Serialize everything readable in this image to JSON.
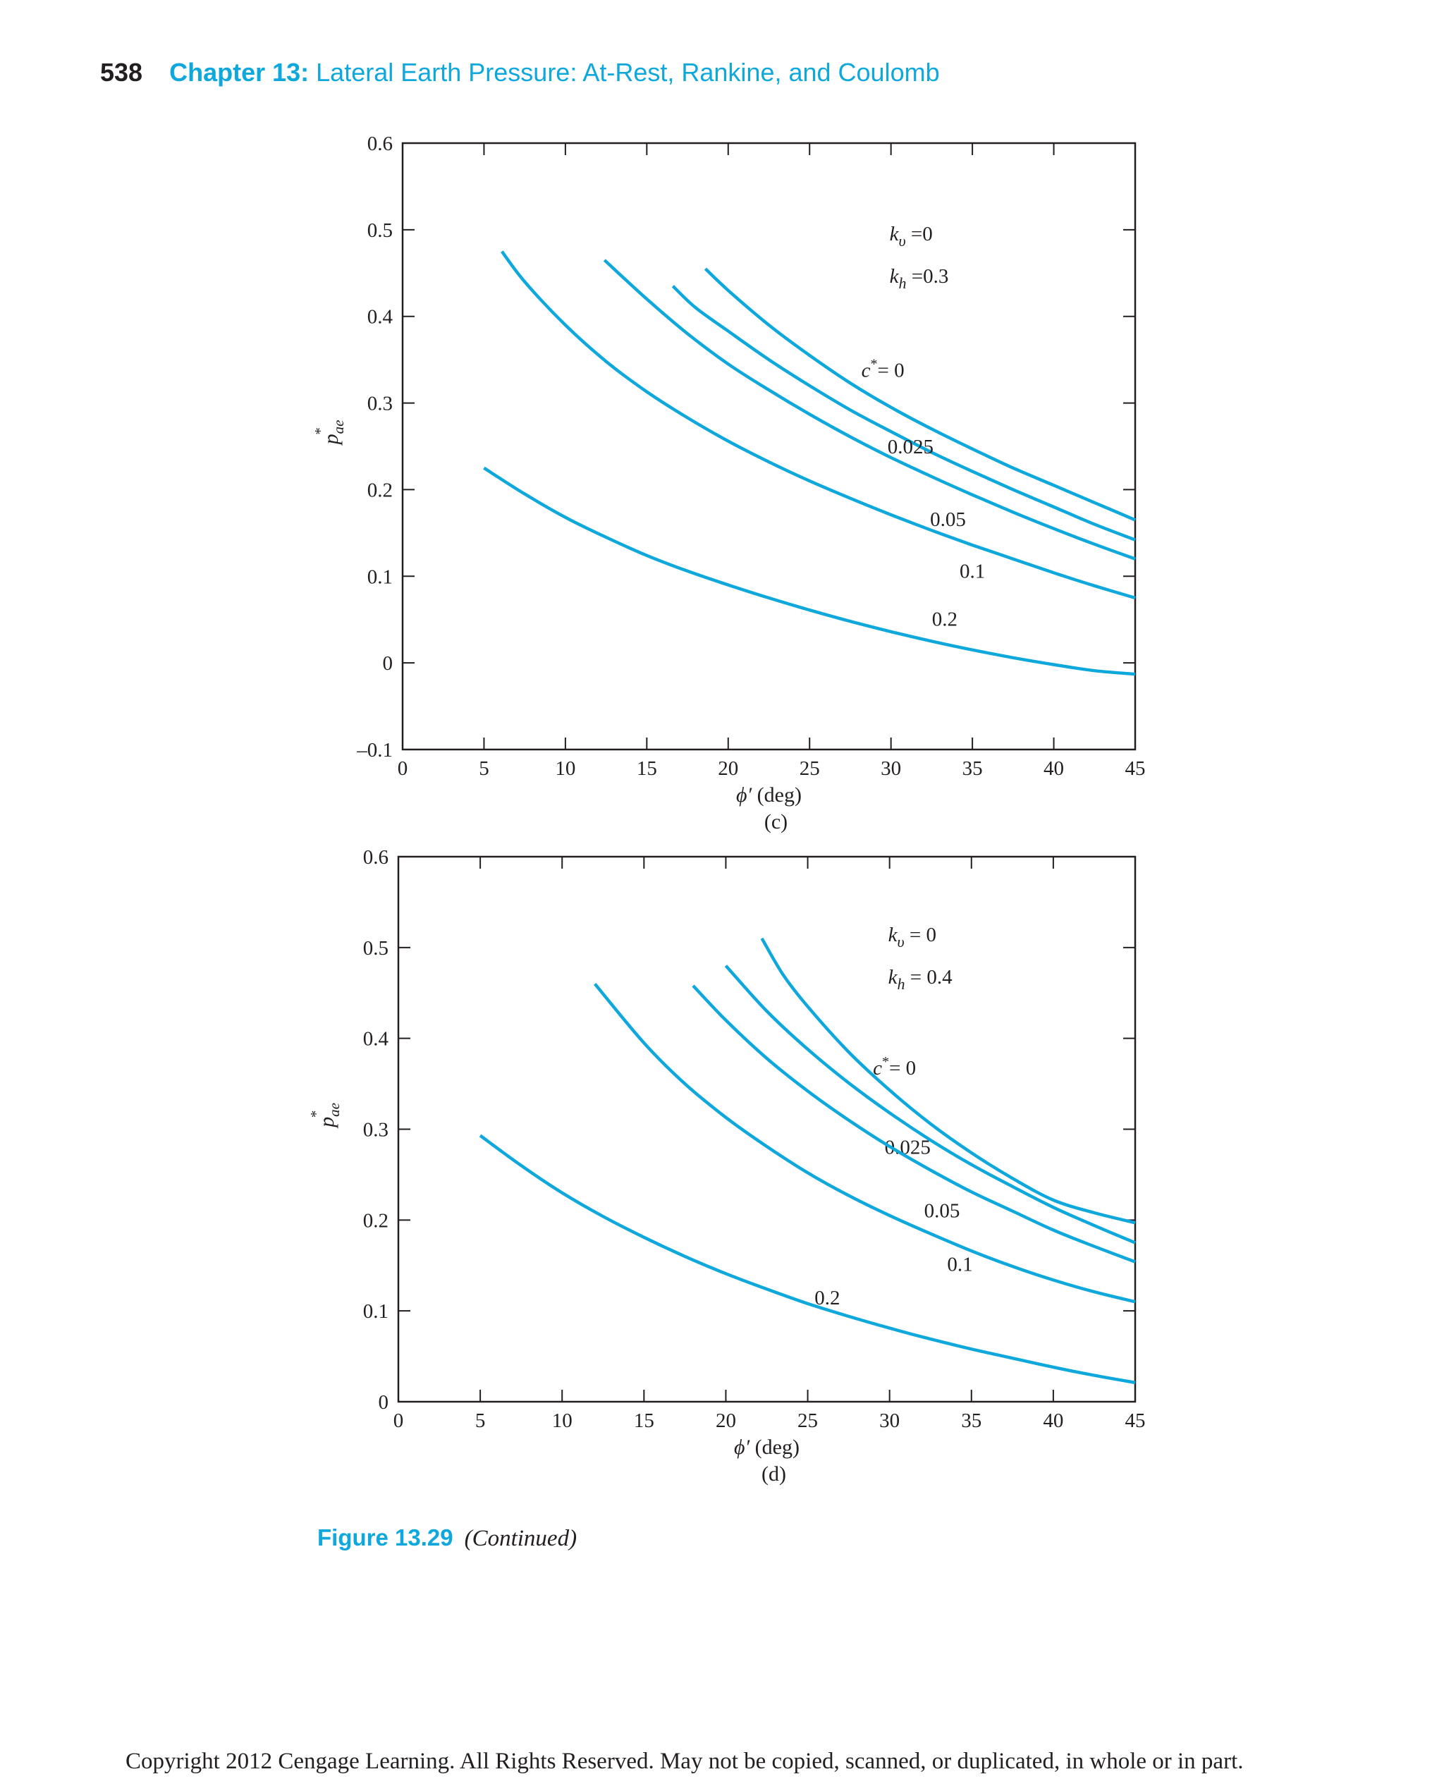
{
  "header": {
    "page_number": "538",
    "chapter_label": "Chapter 13:",
    "chapter_title": "Lateral Earth Pressure: At-Rest, Rankine, and Coulomb"
  },
  "colors": {
    "accent": "#0fa8dc",
    "curve": "#0fa8dc",
    "text": "#231f20"
  },
  "caption": {
    "figure_number": "Figure 13.29",
    "note": "(Continued)"
  },
  "footer": {
    "copyright": "Copyright 2012 Cengage Learning. All Rights Reserved. May not be copied, scanned, or duplicated, in whole or in part."
  },
  "chart_data": [
    {
      "type": "line",
      "panel": "(c)",
      "xlabel": "ϕ′ (deg)",
      "ylabel": "p*ae",
      "xlim": [
        0,
        45
      ],
      "ylim": [
        -0.1,
        0.6
      ],
      "xticks": [
        0,
        5,
        10,
        15,
        20,
        25,
        30,
        35,
        40,
        45
      ],
      "yticks": [
        -0.1,
        0,
        0.1,
        0.2,
        0.3,
        0.4,
        0.5,
        0.6
      ],
      "ytick_labels": [
        "–0.1",
        "0",
        "0.1",
        "0.2",
        "0.3",
        "0.4",
        "0.5",
        "0.6"
      ],
      "annotations": [
        "kv = 0",
        "kh = 0.3"
      ],
      "kv_label": "=0",
      "kh_label": "=0.3",
      "grid": false,
      "series": [
        {
          "name": "c* = 0",
          "label": "c* = 0",
          "label_pos": [
            29.5,
            0.33
          ],
          "x": [
            18.6,
            20,
            22.5,
            25,
            27.5,
            30,
            32.5,
            35,
            37.5,
            40,
            42.5,
            45
          ],
          "y": [
            0.455,
            0.43,
            0.39,
            0.355,
            0.323,
            0.295,
            0.27,
            0.247,
            0.225,
            0.205,
            0.185,
            0.165
          ]
        },
        {
          "name": "c* = 0.025",
          "label": "0.025",
          "label_pos": [
            31.2,
            0.242
          ],
          "x": [
            16.6,
            18,
            20,
            22.5,
            25,
            27.5,
            30,
            32.5,
            35,
            37.5,
            40,
            42.5,
            45
          ],
          "y": [
            0.435,
            0.41,
            0.383,
            0.35,
            0.32,
            0.292,
            0.267,
            0.243,
            0.221,
            0.2,
            0.18,
            0.16,
            0.142
          ]
        },
        {
          "name": "c* = 0.05",
          "label": "0.05",
          "label_pos": [
            33.5,
            0.158
          ],
          "x": [
            12.4,
            15,
            17.5,
            20,
            22.5,
            25,
            27.5,
            30,
            32.5,
            35,
            37.5,
            40,
            42.5,
            45
          ],
          "y": [
            0.465,
            0.42,
            0.38,
            0.345,
            0.315,
            0.287,
            0.261,
            0.237,
            0.215,
            0.194,
            0.174,
            0.155,
            0.137,
            0.12
          ]
        },
        {
          "name": "c* = 0.1",
          "label": "0.1",
          "label_pos": [
            35,
            0.098
          ],
          "x": [
            6.1,
            7.5,
            10,
            12.5,
            15,
            17.5,
            20,
            22.5,
            25,
            27.5,
            30,
            32.5,
            35,
            37.5,
            40,
            42.5,
            45
          ],
          "y": [
            0.475,
            0.44,
            0.39,
            0.348,
            0.313,
            0.283,
            0.256,
            0.232,
            0.21,
            0.19,
            0.171,
            0.153,
            0.136,
            0.12,
            0.104,
            0.089,
            0.075
          ]
        },
        {
          "name": "c* = 0.2",
          "label": "0.2",
          "label_pos": [
            33.3,
            0.043
          ],
          "x": [
            5,
            7.5,
            10,
            12.5,
            15,
            17.5,
            20,
            22.5,
            25,
            27.5,
            30,
            32.5,
            35,
            37.5,
            40,
            42.5,
            45
          ],
          "y": [
            0.225,
            0.195,
            0.168,
            0.145,
            0.124,
            0.106,
            0.09,
            0.075,
            0.061,
            0.048,
            0.036,
            0.025,
            0.015,
            0.006,
            -0.002,
            -0.009,
            -0.013
          ]
        }
      ]
    },
    {
      "type": "line",
      "panel": "(d)",
      "xlabel": "ϕ′ (deg)",
      "ylabel": "p*ae",
      "xlim": [
        0,
        45
      ],
      "ylim": [
        0,
        0.6
      ],
      "xticks": [
        0,
        5,
        10,
        15,
        20,
        25,
        30,
        35,
        40,
        45
      ],
      "yticks": [
        0,
        0.1,
        0.2,
        0.3,
        0.4,
        0.5,
        0.6
      ],
      "ytick_labels": [
        "0",
        "0.1",
        "0.2",
        "0.3",
        "0.4",
        "0.5",
        "0.6"
      ],
      "annotations": [
        "kv = 0",
        "kh = 0.4"
      ],
      "kv_label": "= 0",
      "kh_label": "= 0.4",
      "grid": false,
      "series": [
        {
          "name": "c* = 0",
          "label": "c* = 0",
          "label_pos": [
            30.3,
            0.36
          ],
          "x": [
            22.2,
            23.5,
            25,
            27.5,
            30,
            32.5,
            35,
            37.5,
            40,
            42.5,
            45
          ],
          "y": [
            0.51,
            0.47,
            0.435,
            0.385,
            0.343,
            0.306,
            0.274,
            0.246,
            0.222,
            0.208,
            0.197
          ]
        },
        {
          "name": "c* = 0.025",
          "label": "0.025",
          "label_pos": [
            31.1,
            0.273
          ],
          "x": [
            20,
            22.5,
            25,
            27.5,
            30,
            32.5,
            35,
            37.5,
            40,
            42.5,
            45
          ],
          "y": [
            0.48,
            0.43,
            0.388,
            0.351,
            0.318,
            0.288,
            0.261,
            0.237,
            0.214,
            0.194,
            0.175
          ]
        },
        {
          "name": "c* = 0.05",
          "label": "0.05",
          "label_pos": [
            33.2,
            0.203
          ],
          "x": [
            18,
            20,
            22.5,
            25,
            27.5,
            30,
            32.5,
            35,
            37.5,
            40,
            42.5,
            45
          ],
          "y": [
            0.458,
            0.42,
            0.378,
            0.342,
            0.31,
            0.281,
            0.255,
            0.231,
            0.21,
            0.189,
            0.171,
            0.154
          ]
        },
        {
          "name": "c* = 0.1",
          "label": "0.1",
          "label_pos": [
            34.3,
            0.144
          ],
          "x": [
            12,
            15,
            17.5,
            20,
            22.5,
            25,
            27.5,
            30,
            32.5,
            35,
            37.5,
            40,
            42.5,
            45
          ],
          "y": [
            0.46,
            0.395,
            0.35,
            0.313,
            0.281,
            0.252,
            0.227,
            0.205,
            0.185,
            0.166,
            0.149,
            0.134,
            0.121,
            0.11
          ]
        },
        {
          "name": "c* = 0.2",
          "label": "0.2",
          "label_pos": [
            26.2,
            0.107
          ],
          "x": [
            5,
            7.5,
            10,
            12.5,
            15,
            17.5,
            20,
            22.5,
            25,
            27.5,
            30,
            32.5,
            35,
            37.5,
            40,
            42.5,
            45
          ],
          "y": [
            0.293,
            0.26,
            0.23,
            0.204,
            0.181,
            0.16,
            0.141,
            0.124,
            0.108,
            0.094,
            0.081,
            0.069,
            0.058,
            0.048,
            0.038,
            0.029,
            0.021
          ]
        }
      ]
    }
  ]
}
